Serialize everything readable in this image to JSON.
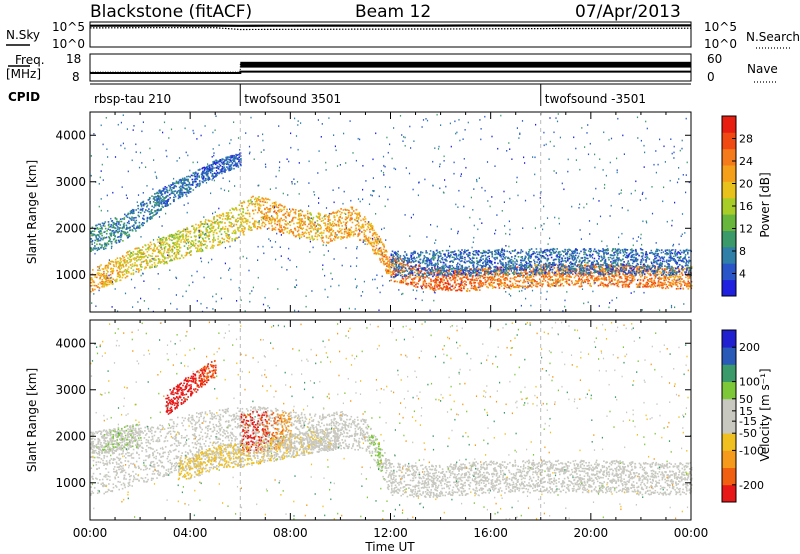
{
  "header": {
    "station": "Blackstone (fitACF)",
    "beam": "Beam 12",
    "date": "07/Apr/2013"
  },
  "chart_data": [
    {
      "type": "line",
      "panel": "noise",
      "left_label": "N.Sky",
      "right_label": "N.Search",
      "left_ticks": [
        "10^5",
        "10^0"
      ],
      "right_ticks": [
        "10^5",
        "10^0"
      ],
      "x": [
        0,
        1,
        2,
        3,
        4,
        5,
        6,
        7,
        8,
        9,
        10,
        11,
        12,
        13,
        14,
        15,
        16,
        17,
        18,
        19,
        20,
        21,
        22,
        23,
        24
      ],
      "series": [
        {
          "name": "N.Sky",
          "values": [
            40000,
            41000,
            42000,
            43000,
            42500,
            42000,
            38000,
            39000,
            40000,
            40500,
            41000,
            42000,
            41500,
            42000,
            42500,
            43000,
            44000,
            44500,
            45000,
            45500,
            45800,
            46000,
            46200,
            46500,
            46800
          ]
        },
        {
          "name": "N.Search",
          "values": [
            12000,
            12500,
            13000,
            13200,
            13100,
            12900,
            5000,
            5200,
            5400,
            5600,
            5800,
            6200,
            6000,
            6300,
            6600,
            7000,
            7300,
            7600,
            8000,
            8300,
            8600,
            9000,
            9300,
            9600,
            10000
          ]
        }
      ]
    },
    {
      "type": "line",
      "panel": "frequency-nave",
      "left_label": "Freq.",
      "left_unit": "[MHz]",
      "right_label": "Nave",
      "left_ticks": [
        "18",
        "8"
      ],
      "right_ticks": [
        "60",
        "0"
      ],
      "x": [
        0,
        6,
        6,
        24
      ],
      "series": [
        {
          "name": "Freq.",
          "values": [
            10.6,
            10.6,
            11.2,
            11.2
          ]
        },
        {
          "name": "Nave",
          "values": [
            18,
            18,
            40,
            40
          ]
        }
      ]
    },
    {
      "type": "table",
      "panel": "cpid",
      "label": "CPID",
      "segments": [
        {
          "start": 0,
          "end": 6,
          "name": "rbsp-tau 210"
        },
        {
          "start": 6,
          "end": 18,
          "name": "twofsound 3501"
        },
        {
          "start": 18,
          "end": 24,
          "name": "twofsound -3501"
        }
      ]
    },
    {
      "type": "heatmap",
      "panel": "power",
      "ylabel": "Slant Range [km]",
      "xlim": [
        0,
        24
      ],
      "ylim": [
        200,
        4500
      ],
      "yticks": [
        1000,
        2000,
        3000,
        4000
      ],
      "colorbar": {
        "label": "Power [dB]",
        "range": [
          0,
          32
        ],
        "ticks": [
          4,
          8,
          12,
          16,
          20,
          24,
          28
        ],
        "colors": [
          "#2020e0",
          "#2a55c8",
          "#2f7fa8",
          "#3a9a6a",
          "#69b63c",
          "#a8cc28",
          "#e8c21a",
          "#f5a01a",
          "#f57a1a",
          "#f04a12",
          "#e81f10"
        ]
      },
      "structures": [
        {
          "t": [
            0,
            0.5,
            1,
            1.5,
            2,
            2.5,
            3,
            3.5,
            4,
            4.5,
            5,
            5.5,
            6,
            6.5,
            7,
            7.5,
            8,
            8.5,
            9,
            9.5,
            10,
            10.5,
            11,
            11.5,
            12,
            13,
            14,
            15,
            16,
            17,
            18,
            19,
            20,
            21,
            22,
            23,
            24
          ],
          "center": [
            900,
            1000,
            1100,
            1250,
            1350,
            1450,
            1550,
            1650,
            1750,
            1850,
            1950,
            2050,
            2200,
            2350,
            2350,
            2250,
            2150,
            2100,
            2050,
            2000,
            2100,
            2150,
            2000,
            1600,
            1150,
            1000,
            900,
            900,
            950,
            950,
            1000,
            1000,
            1000,
            1000,
            980,
            960,
            950
          ],
          "width": [
            250,
            250,
            260,
            270,
            280,
            290,
            300,
            310,
            320,
            330,
            340,
            350,
            360,
            360,
            340,
            320,
            300,
            300,
            300,
            320,
            340,
            340,
            300,
            260,
            260,
            260,
            240,
            240,
            240,
            240,
            240,
            240,
            240,
            240,
            240,
            240,
            240
          ],
          "power": [
            22,
            21,
            20,
            19,
            18,
            18,
            17,
            17,
            17,
            17,
            18,
            18,
            19,
            20,
            22,
            23,
            22,
            21,
            20,
            21,
            22,
            22,
            21,
            22,
            24,
            26,
            27,
            26,
            24,
            24,
            24,
            24,
            25,
            25,
            25,
            24,
            24
          ]
        },
        {
          "t": [
            0,
            0.5,
            1,
            1.5,
            2,
            2.5,
            3,
            3.5,
            4,
            4.5,
            5,
            5.5,
            6
          ],
          "center": [
            1800,
            1850,
            1950,
            2100,
            2300,
            2500,
            2700,
            2850,
            3000,
            3150,
            3300,
            3400,
            3500
          ],
          "width": [
            300,
            300,
            300,
            280,
            260,
            240,
            220,
            200,
            200,
            180,
            180,
            160,
            150
          ],
          "power": [
            9,
            9,
            8,
            8,
            7,
            7,
            6,
            6,
            6,
            5,
            5,
            5,
            5
          ]
        },
        {
          "t": [
            12,
            13,
            14,
            15,
            16,
            17,
            18,
            19,
            20,
            21,
            22,
            23,
            24
          ],
          "center": [
            1250,
            1250,
            1270,
            1270,
            1280,
            1280,
            1300,
            1300,
            1300,
            1300,
            1300,
            1280,
            1280
          ],
          "width": [
            280,
            280,
            280,
            280,
            280,
            280,
            280,
            280,
            280,
            280,
            280,
            280,
            280
          ],
          "power": [
            6,
            6,
            6,
            6,
            6,
            6,
            6,
            6,
            6,
            6,
            6,
            6,
            6
          ]
        }
      ]
    },
    {
      "type": "heatmap",
      "panel": "velocity",
      "ylabel": "Slant Range [km]",
      "xlabel": "Time UT",
      "xlim": [
        0,
        24
      ],
      "ylim": [
        200,
        4500
      ],
      "xticks": [
        "00:00",
        "04:00",
        "08:00",
        "12:00",
        "16:00",
        "20:00",
        "00:00"
      ],
      "yticks": [
        1000,
        2000,
        3000,
        4000
      ],
      "colorbar": {
        "label": "Velocity [m s⁻¹]",
        "range": [
          -250,
          250
        ],
        "ticks": [
          200,
          100,
          50,
          15,
          -15,
          -50,
          -100,
          -200
        ],
        "colors": [
          "#e81818",
          "#f06010",
          "#f59a1a",
          "#f0c020",
          "#c8c8c0",
          "#c8c8c0",
          "#7cc838",
          "#3a9a6a",
          "#2a5ab8",
          "#2020d0"
        ]
      },
      "structures": [
        {
          "t": [
            0,
            1,
            2,
            3,
            4,
            5,
            6,
            7,
            8,
            9,
            10,
            11,
            11.5,
            12,
            13,
            14,
            15,
            16,
            17,
            18,
            19,
            20,
            21,
            22,
            23,
            24
          ],
          "center": [
            1300,
            1450,
            1600,
            1750,
            1900,
            2050,
            2200,
            2250,
            2150,
            2100,
            2150,
            2050,
            1600,
            1100,
            1050,
            1050,
            1100,
            1150,
            1150,
            1150,
            1150,
            1150,
            1150,
            1100,
            1100,
            1100
          ],
          "width": [
            600,
            600,
            600,
            600,
            600,
            550,
            450,
            400,
            400,
            400,
            400,
            350,
            300,
            350,
            350,
            350,
            350,
            350,
            350,
            350,
            350,
            350,
            350,
            350,
            350,
            350
          ],
          "velocity": [
            0,
            0,
            0,
            0,
            0,
            5,
            10,
            5,
            0,
            -10,
            -5,
            30,
            60,
            10,
            0,
            0,
            0,
            0,
            0,
            0,
            0,
            0,
            0,
            0,
            0,
            0
          ]
        },
        {
          "t": [
            3,
            3.5,
            4,
            4.5,
            5
          ],
          "center": [
            2700,
            2900,
            3100,
            3300,
            3500
          ],
          "width": [
            250,
            250,
            250,
            200,
            200
          ],
          "velocity": [
            -230,
            -230,
            -220,
            -200,
            -200
          ]
        },
        {
          "t": [
            6,
            6.5,
            7,
            7.5,
            8
          ],
          "center": [
            2050,
            2100,
            2150,
            2150,
            2100
          ],
          "width": [
            450,
            450,
            450,
            400,
            400
          ],
          "velocity": [
            -200,
            -220,
            -200,
            -150,
            -120
          ]
        },
        {
          "t": [
            3.5,
            4,
            4.5,
            5,
            5.5,
            6,
            6.5,
            7,
            8,
            9,
            10
          ],
          "center": [
            1300,
            1350,
            1450,
            1550,
            1600,
            1600,
            1650,
            1700,
            1800,
            1900,
            2000
          ],
          "width": [
            250,
            250,
            250,
            250,
            250,
            250,
            250,
            250,
            250,
            250,
            250
          ],
          "velocity": [
            -60,
            -60,
            -55,
            -55,
            -50,
            -50,
            -45,
            -45,
            -40,
            -35,
            -30
          ]
        },
        {
          "t": [
            0,
            1,
            2
          ],
          "center": [
            1850,
            1950,
            2050
          ],
          "width": [
            250,
            250,
            250
          ],
          "velocity": [
            30,
            40,
            40
          ]
        }
      ]
    }
  ]
}
